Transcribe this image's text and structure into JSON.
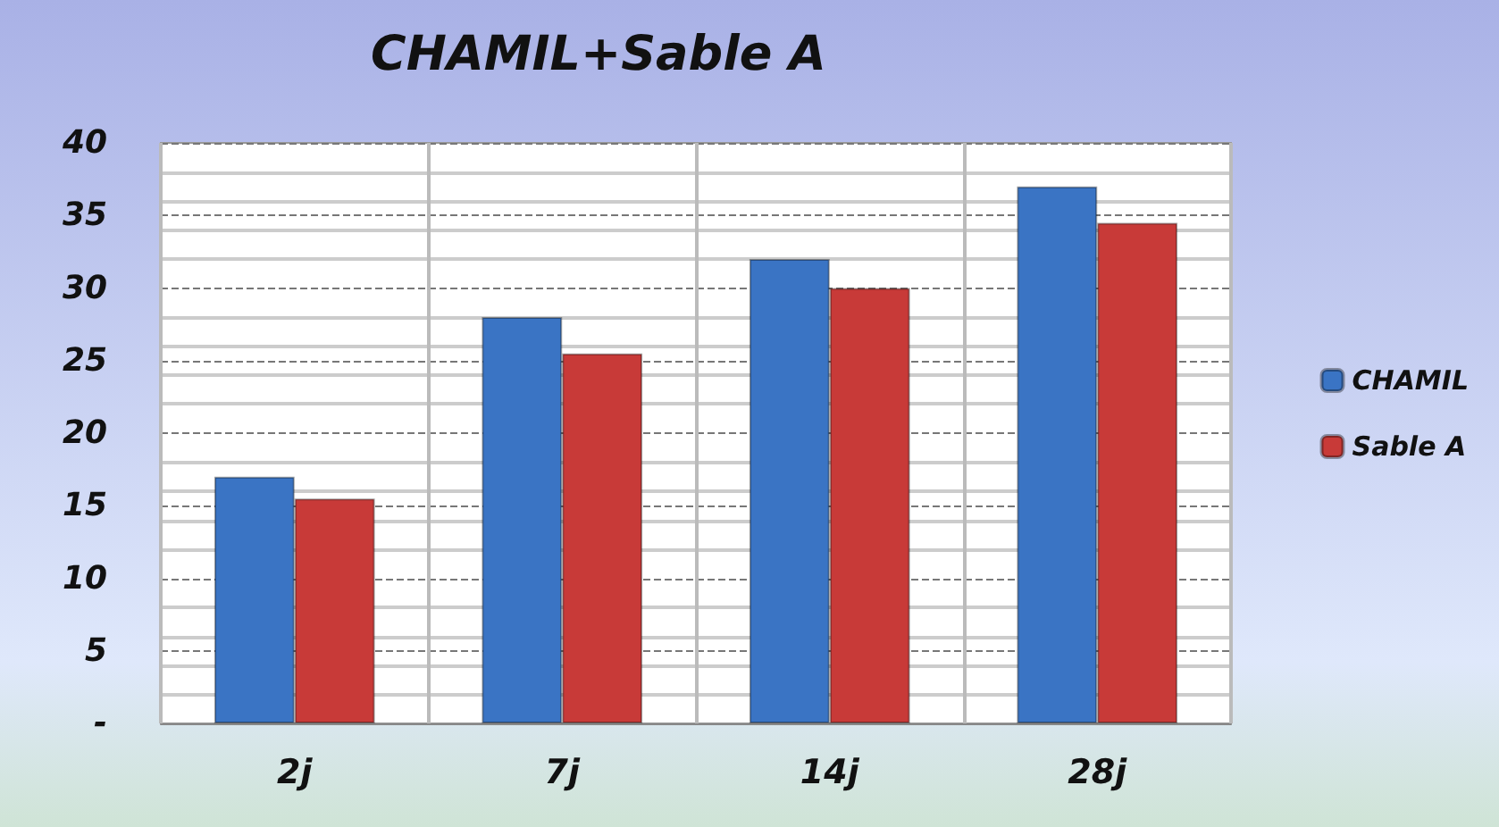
{
  "chart_data": {
    "type": "bar",
    "title": "CHAMIL+Sable A",
    "categories": [
      "2j",
      "7j",
      "14j",
      "28j"
    ],
    "series": [
      {
        "name": "CHAMIL",
        "color": "#3a74c4",
        "values": [
          17,
          28,
          32,
          37
        ]
      },
      {
        "name": "Sable A",
        "color": "#c83a38",
        "values": [
          15.5,
          25.5,
          30,
          34.5
        ]
      }
    ],
    "ylim": [
      0,
      40
    ],
    "yticks": [
      {
        "value": 0,
        "label": "-"
      },
      5,
      10,
      15,
      20,
      25,
      30,
      35,
      40
    ],
    "grid": true,
    "legend": "right"
  }
}
